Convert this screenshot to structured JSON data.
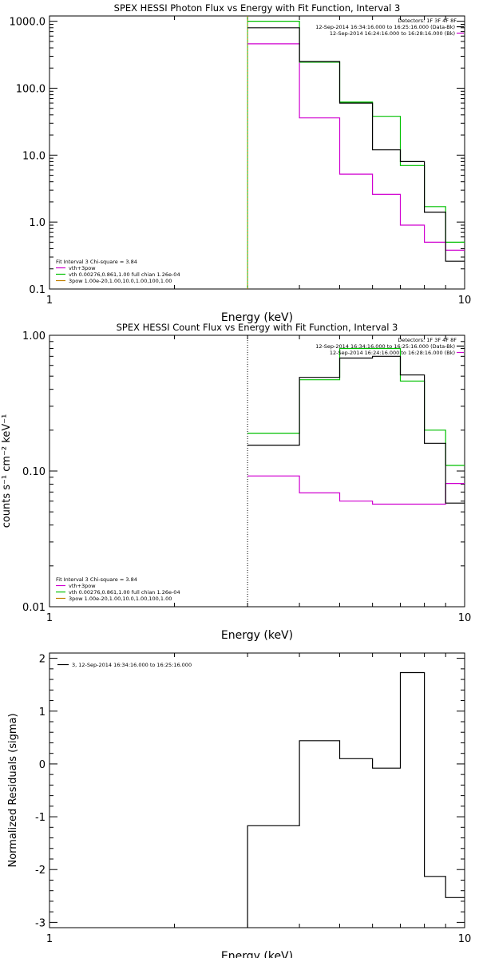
{
  "colors": {
    "data": "#000000",
    "model": "#00c000",
    "bk": "#d000d0",
    "pileup": "#c08000",
    "axis": "#000000"
  },
  "chart_data": [
    {
      "id": "photon",
      "type": "line",
      "title": "SPEX HESSI Photon Flux vs Energy with Fit Function, Interval 3",
      "xlabel": "Energy (keV)",
      "ylabel": "",
      "xscale": "log",
      "yscale": "log",
      "xlim": [
        1,
        10
      ],
      "ylim": [
        0.1,
        1200
      ],
      "xticks": [
        {
          "v": 1,
          "label": "1"
        },
        {
          "v": 10,
          "label": "10"
        }
      ],
      "yticks": [
        {
          "v": 1000,
          "label": "1000.0"
        },
        {
          "v": 100,
          "label": "100.0"
        },
        {
          "v": 10,
          "label": "10.0"
        },
        {
          "v": 1,
          "label": "1.0"
        },
        {
          "v": 0.1,
          "label": "0.1"
        }
      ],
      "vline": 3.0,
      "vline_style": "green-solid",
      "legend_right": {
        "detectors": "Detectors: 1F 3F 4F 8F",
        "lines": [
          {
            "text": "12-Sep-2014 16:34:16.000 to 16:25:16.000 (Data-Bk)",
            "color": "data"
          },
          {
            "text": "12-Sep-2014 16:24:16.000 to 16:28:16.000 (Bk)",
            "color": "bk"
          }
        ]
      },
      "legend_left": {
        "header": "Fit Interval 3   Chi-square = 3.84",
        "lines": [
          {
            "text": "vth+3pow",
            "color": "bk"
          },
          {
            "text": "vth 0.00276,0.861,1.00  full chian 1.26e-04",
            "color": "model"
          },
          {
            "text": "3pow 1.00e-20,1.00,10.0,1.00,100,1.00",
            "color": "pileup"
          }
        ]
      },
      "series": [
        {
          "name": "Data-Bk",
          "color": "data",
          "edges": [
            3.0,
            4.0,
            5.0,
            6.0,
            7.0,
            8.0,
            9.0,
            10.0
          ],
          "values": [
            800,
            250,
            60,
            12,
            8,
            1.4,
            0.26
          ]
        },
        {
          "name": "Model",
          "color": "model",
          "edges": [
            3.0,
            4.0,
            5.0,
            6.0,
            7.0,
            8.0,
            9.0,
            10.0
          ],
          "values": [
            1000,
            245,
            62,
            38,
            7.0,
            1.7,
            0.5
          ]
        },
        {
          "name": "Bk",
          "color": "bk",
          "edges": [
            3.0,
            4.0,
            5.0,
            6.0,
            7.0,
            8.0,
            9.0,
            10.0
          ],
          "values": [
            460,
            36,
            5.2,
            2.6,
            0.9,
            0.5,
            0.38
          ]
        }
      ]
    },
    {
      "id": "count",
      "type": "line",
      "title": "SPEX HESSI Count Flux vs Energy with Fit Function, Interval 3",
      "xlabel": "Energy (keV)",
      "ylabel": "counts s⁻¹ cm⁻² keV⁻¹",
      "xscale": "log",
      "yscale": "log",
      "xlim": [
        1,
        10
      ],
      "ylim": [
        0.01,
        1.0
      ],
      "xticks": [
        {
          "v": 1,
          "label": "1"
        },
        {
          "v": 10,
          "label": "10"
        }
      ],
      "yticks": [
        {
          "v": 1.0,
          "label": "1.00"
        },
        {
          "v": 0.1,
          "label": "0.10"
        },
        {
          "v": 0.01,
          "label": "0.01"
        }
      ],
      "vline": 3.0,
      "vline_style": "dotted",
      "legend_right": {
        "detectors": "Detectors: 1F 3F 4F 8F",
        "lines": [
          {
            "text": "12-Sep-2014 16:34:16.000 to 16:25:16.000 (Data-Bk)",
            "color": "data"
          },
          {
            "text": "12-Sep-2014 16:24:16.000 to 16:28:16.000 (Bk)",
            "color": "bk"
          }
        ]
      },
      "legend_left": {
        "header": "Fit Interval 3   Chi-square = 3.84",
        "lines": [
          {
            "text": "vth+3pow",
            "color": "bk"
          },
          {
            "text": "vth 0.00276,0.861,1.00  full chian 1.26e-04",
            "color": "model"
          },
          {
            "text": "3pow 1.00e-20,1.00,10.0,1.00,100,1.00",
            "color": "pileup"
          }
        ]
      },
      "series": [
        {
          "name": "Data-Bk",
          "color": "data",
          "edges": [
            3.0,
            4.0,
            5.0,
            6.0,
            7.0,
            8.0,
            9.0,
            10.0
          ],
          "values": [
            0.155,
            0.49,
            0.68,
            0.7,
            0.51,
            0.16,
            0.058
          ]
        },
        {
          "name": "Model",
          "color": "model",
          "edges": [
            3.0,
            4.0,
            5.0,
            6.0,
            7.0,
            8.0,
            9.0,
            10.0
          ],
          "values": [
            0.19,
            0.47,
            0.8,
            0.8,
            0.46,
            0.2,
            0.11
          ]
        },
        {
          "name": "Bk",
          "color": "bk",
          "edges": [
            3.0,
            4.0,
            5.0,
            6.0,
            7.0,
            8.0,
            9.0,
            10.0
          ],
          "values": [
            0.092,
            0.069,
            0.06,
            0.057,
            0.057,
            0.057,
            0.081
          ]
        }
      ]
    },
    {
      "id": "resid",
      "type": "line",
      "title": "",
      "xlabel": "Energy (keV)",
      "ylabel": "Normalized Residuals (sigma)",
      "xscale": "log",
      "yscale": "linear",
      "xlim": [
        1,
        10
      ],
      "ylim": [
        -3.1,
        2.1
      ],
      "xticks": [
        {
          "v": 1,
          "label": "1"
        },
        {
          "v": 10,
          "label": "10"
        }
      ],
      "yticks": [
        {
          "v": 2,
          "label": "2"
        },
        {
          "v": 1,
          "label": "1"
        },
        {
          "v": 0,
          "label": "0"
        },
        {
          "v": -1,
          "label": "-1"
        },
        {
          "v": -2,
          "label": "-2"
        },
        {
          "v": -3,
          "label": "-3"
        }
      ],
      "legend_left_top": {
        "text": "3, 12-Sep-2014 16:34:16.000 to 16:25:16.000",
        "color": "data"
      },
      "series": [
        {
          "name": "3, 12-Sep-2014 16:34:16.000 to 16:25:16.000",
          "color": "data",
          "edges": [
            3.0,
            4.0,
            5.0,
            6.0,
            7.0,
            8.0,
            9.0,
            10.0
          ],
          "values": [
            -1.17,
            0.44,
            0.1,
            -0.08,
            1.73,
            -2.13,
            -2.53
          ]
        }
      ]
    }
  ]
}
